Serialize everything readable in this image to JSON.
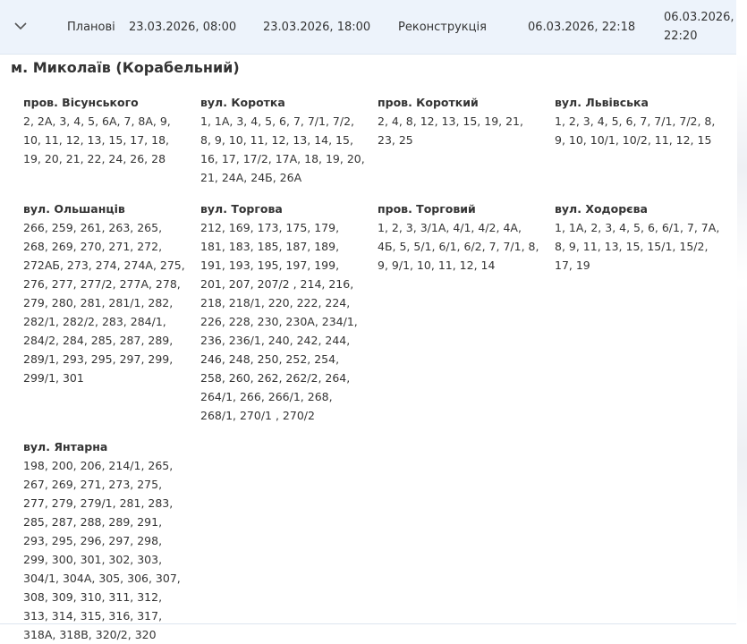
{
  "header": {
    "cells": [
      "Планові",
      "23.03.2026, 08:00",
      "23.03.2026, 18:00",
      "Реконструкція",
      "06.03.2026, 22:18",
      "06.03.2026, 22:20"
    ]
  },
  "city": "м. Миколаїв (Корабельний)",
  "streets": [
    {
      "name": "пров. Вісунського",
      "houses": "2, 2А, 3, 4, 5, 6А, 7, 8А, 9, 10, 11, 12, 13, 15, 17, 18, 19, 20, 21, 22, 24, 26, 28"
    },
    {
      "name": "вул. Коротка",
      "houses": "1, 1А, 3, 4, 5, 6, 7, 7/1, 7/2, 8, 9, 10, 11, 12, 13, 14, 15, 16, 17, 17/2, 17А, 18, 19, 20, 21, 24А, 24Б, 26А"
    },
    {
      "name": "пров. Короткий",
      "houses": "2, 4, 8, 12, 13, 15, 19, 21, 23, 25"
    },
    {
      "name": "вул. Львівська",
      "houses": "1, 2, 3, 4, 5, 6, 7, 7/1, 7/2, 8, 9, 10, 10/1, 10/2, 11, 12, 15"
    },
    {
      "name": "вул. Ольшанців",
      "houses": "266, 259, 261, 263, 265, 268, 269, 270, 271, 272, 272АБ, 273, 274, 274А, 275, 276, 277, 277/2, 277А, 278, 279, 280, 281, 281/1, 282, 282/1, 282/2, 283, 284/1, 284/2, 284, 285, 287, 289, 289/1, 293, 295, 297, 299, 299/1, 301"
    },
    {
      "name": "вул. Торгова",
      "houses": "212, 169, 173, 175, 179, 181, 183, 185, 187, 189, 191, 193, 195, 197, 199, 201, 207, 207/2 , 214, 216, 218, 218/1, 220, 222, 224, 226, 228, 230, 230А, 234/1, 236, 236/1, 240, 242, 244, 246, 248, 250, 252, 254, 258, 260, 262, 262/2, 264, 264/1, 266, 266/1, 268, 268/1, 270/1 , 270/2"
    },
    {
      "name": "пров. Торговий",
      "houses": "1, 2, 3, 3/1А, 4/1, 4/2, 4А, 4Б, 5, 5/1, 6/1, 6/2, 7, 7/1, 8, 9, 9/1, 10, 11, 12, 14"
    },
    {
      "name": "вул. Ходорєва",
      "houses": "1, 1А, 2, 3, 4, 5, 6, 6/1, 7, 7А, 8, 9, 11, 13, 15, 15/1, 15/2, 17, 19"
    },
    {
      "name": "вул. Янтарна",
      "houses": "198, 200, 206, 214/1, 265, 267, 269, 271, 273, 275, 277, 279, 279/1, 281, 283, 285, 287, 288, 289, 291, 293, 295, 296, 297, 298, 299, 300, 301, 302, 303, 304/1, 304А, 305, 306, 307, 308, 309, 310, 311, 312, 313, 314, 315, 316, 317, 318А, 318В, 320/2, 320"
    }
  ]
}
